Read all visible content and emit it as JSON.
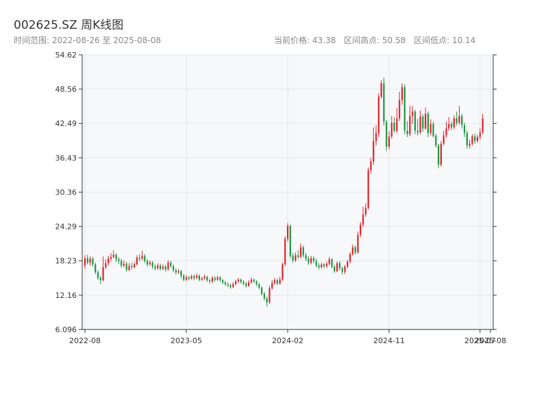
{
  "header": {
    "title": "002625.SZ 周K线图",
    "range_text": "时间范围: 2022-08-26 至 2025-08-08",
    "current_price": "当前价格: 43.38",
    "period_high": "区间高点: 50.58",
    "period_low": "区间低点: 10.14"
  },
  "colors": {
    "up": "#e0212b",
    "down": "#1a9641",
    "plot_bg": "#f7f8fa",
    "grid": "#e3e6ea",
    "axis": "#333333"
  },
  "chart_data": {
    "type": "candlestick",
    "title": "002625.SZ 周K线图",
    "xlabel": "",
    "ylabel": "",
    "ylim": [
      6.096,
      54.62
    ],
    "y_ticks": [
      "6.096",
      "12.16",
      "18.23",
      "24.29",
      "30.36",
      "36.43",
      "42.49",
      "48.56",
      "54.62"
    ],
    "x_ticks": [
      "2022-08",
      "2023-05",
      "2024-02",
      "2024-11",
      "2025-07",
      "2025-08"
    ],
    "x_tick_index": [
      0,
      39,
      78,
      117,
      152,
      156
    ],
    "x_range": [
      0,
      156
    ],
    "grid": true,
    "candles": [
      [
        17.4,
        18.7,
        19.2,
        16.8
      ],
      [
        18.7,
        17.9,
        19.3,
        17.6
      ],
      [
        17.9,
        18.6,
        19.0,
        17.4
      ],
      [
        18.6,
        17.6,
        18.9,
        17.2
      ],
      [
        17.6,
        16.2,
        17.9,
        15.9
      ],
      [
        16.2,
        15.2,
        16.6,
        14.9
      ],
      [
        15.2,
        14.8,
        15.6,
        14.1
      ],
      [
        14.8,
        17.1,
        19.0,
        14.6
      ],
      [
        17.1,
        17.8,
        18.5,
        16.8
      ],
      [
        17.8,
        18.6,
        19.1,
        17.4
      ],
      [
        18.6,
        18.9,
        19.6,
        18.1
      ],
      [
        18.9,
        19.3,
        20.1,
        18.7
      ],
      [
        19.3,
        18.5,
        19.6,
        18.0
      ],
      [
        18.5,
        18.2,
        18.9,
        17.6
      ],
      [
        18.2,
        17.4,
        18.6,
        17.0
      ],
      [
        17.4,
        17.7,
        18.3,
        17.1
      ],
      [
        17.7,
        16.6,
        18.0,
        16.3
      ],
      [
        16.6,
        17.3,
        17.8,
        16.4
      ],
      [
        17.3,
        17.1,
        17.9,
        16.7
      ],
      [
        17.1,
        17.6,
        18.0,
        16.9
      ],
      [
        17.6,
        18.8,
        19.2,
        17.4
      ],
      [
        18.8,
        18.6,
        19.4,
        18.1
      ],
      [
        18.6,
        19.1,
        20.0,
        18.3
      ],
      [
        19.1,
        18.2,
        19.4,
        17.8
      ],
      [
        18.2,
        17.6,
        18.5,
        17.2
      ],
      [
        17.6,
        17.9,
        18.3,
        17.4
      ],
      [
        17.9,
        17.2,
        18.2,
        16.8
      ],
      [
        17.2,
        16.9,
        17.6,
        16.5
      ],
      [
        16.9,
        17.4,
        17.8,
        16.6
      ],
      [
        17.4,
        16.8,
        17.7,
        16.5
      ],
      [
        16.8,
        17.2,
        17.6,
        16.6
      ],
      [
        17.2,
        16.7,
        17.5,
        16.3
      ],
      [
        16.7,
        17.9,
        18.3,
        16.5
      ],
      [
        17.9,
        17.3,
        18.2,
        17.0
      ],
      [
        17.3,
        16.6,
        17.6,
        16.2
      ],
      [
        16.6,
        16.2,
        16.9,
        15.8
      ],
      [
        16.2,
        16.4,
        16.8,
        15.9
      ],
      [
        16.4,
        15.6,
        16.6,
        15.1
      ],
      [
        15.6,
        14.9,
        15.9,
        14.6
      ],
      [
        14.9,
        15.3,
        15.7,
        14.7
      ],
      [
        15.3,
        15.1,
        15.6,
        14.8
      ],
      [
        15.1,
        15.5,
        15.8,
        14.9
      ],
      [
        15.5,
        15.2,
        15.8,
        14.8
      ],
      [
        15.2,
        15.6,
        16.0,
        15.0
      ],
      [
        15.6,
        14.9,
        15.8,
        14.6
      ],
      [
        14.9,
        15.1,
        15.4,
        14.7
      ],
      [
        15.1,
        15.4,
        15.8,
        14.9
      ],
      [
        15.4,
        14.8,
        15.6,
        14.5
      ],
      [
        14.8,
        14.6,
        15.0,
        14.2
      ],
      [
        14.6,
        15.2,
        15.5,
        14.3
      ],
      [
        15.2,
        14.9,
        15.5,
        14.6
      ],
      [
        14.9,
        15.3,
        15.6,
        14.7
      ],
      [
        15.3,
        14.8,
        15.5,
        14.5
      ],
      [
        14.8,
        14.4,
        15.0,
        14.1
      ],
      [
        14.4,
        14.1,
        14.7,
        13.8
      ],
      [
        14.1,
        13.9,
        14.4,
        13.6
      ],
      [
        13.9,
        13.6,
        14.2,
        13.3
      ],
      [
        13.6,
        14.1,
        14.5,
        13.4
      ],
      [
        14.1,
        14.6,
        14.9,
        13.9
      ],
      [
        14.6,
        14.9,
        15.2,
        14.3
      ],
      [
        14.9,
        14.5,
        15.1,
        14.2
      ],
      [
        14.5,
        14.2,
        14.8,
        13.9
      ],
      [
        14.2,
        13.8,
        14.5,
        13.5
      ],
      [
        13.8,
        14.4,
        14.8,
        13.6
      ],
      [
        14.4,
        14.9,
        15.3,
        14.2
      ],
      [
        14.9,
        14.6,
        15.1,
        14.3
      ],
      [
        14.6,
        14.1,
        14.8,
        13.8
      ],
      [
        14.1,
        13.5,
        14.3,
        13.2
      ],
      [
        13.5,
        12.4,
        13.7,
        12.1
      ],
      [
        12.4,
        11.6,
        12.7,
        11.2
      ],
      [
        11.6,
        10.9,
        11.9,
        10.14
      ],
      [
        10.9,
        13.4,
        13.8,
        10.6
      ],
      [
        13.4,
        14.3,
        14.8,
        13.1
      ],
      [
        14.3,
        14.8,
        15.2,
        14.0
      ],
      [
        14.8,
        14.2,
        15.1,
        13.9
      ],
      [
        14.2,
        14.9,
        15.4,
        14.0
      ],
      [
        14.9,
        17.6,
        17.9,
        14.7
      ],
      [
        17.6,
        22.1,
        22.6,
        17.3
      ],
      [
        22.1,
        24.4,
        24.9,
        21.6
      ],
      [
        24.4,
        19.1,
        24.6,
        18.7
      ],
      [
        19.1,
        18.3,
        19.6,
        17.9
      ],
      [
        18.3,
        19.2,
        19.7,
        18.0
      ],
      [
        19.2,
        18.9,
        20.1,
        18.6
      ],
      [
        18.9,
        20.6,
        21.3,
        18.7
      ],
      [
        20.6,
        19.2,
        20.9,
        18.8
      ],
      [
        19.2,
        18.6,
        19.6,
        18.2
      ],
      [
        18.6,
        17.9,
        19.0,
        17.5
      ],
      [
        17.9,
        18.7,
        19.1,
        17.6
      ],
      [
        18.7,
        18.2,
        19.0,
        17.8
      ],
      [
        18.2,
        17.4,
        18.6,
        17.0
      ],
      [
        17.4,
        17.1,
        17.8,
        16.7
      ],
      [
        17.1,
        17.6,
        17.9,
        16.9
      ],
      [
        17.6,
        17.3,
        17.8,
        16.9
      ],
      [
        17.3,
        17.7,
        18.1,
        17.0
      ],
      [
        17.7,
        18.5,
        18.9,
        17.4
      ],
      [
        18.5,
        17.2,
        18.7,
        16.9
      ],
      [
        17.2,
        16.4,
        17.5,
        16.1
      ],
      [
        16.4,
        17.8,
        18.1,
        16.2
      ],
      [
        17.8,
        16.9,
        18.2,
        16.6
      ],
      [
        16.9,
        16.3,
        17.2,
        15.8
      ],
      [
        16.3,
        17.2,
        17.5,
        15.9
      ],
      [
        17.2,
        18.1,
        18.4,
        16.9
      ],
      [
        18.1,
        19.4,
        19.8,
        17.8
      ],
      [
        19.4,
        20.6,
        21.1,
        19.1
      ],
      [
        20.6,
        19.7,
        20.9,
        19.3
      ],
      [
        19.7,
        22.8,
        23.4,
        19.5
      ],
      [
        22.8,
        24.6,
        25.1,
        22.4
      ],
      [
        24.6,
        26.4,
        27.8,
        24.2
      ],
      [
        26.4,
        27.6,
        28.4,
        26.0
      ],
      [
        27.6,
        34.2,
        34.7,
        27.3
      ],
      [
        34.2,
        35.8,
        36.4,
        33.6
      ],
      [
        35.8,
        39.4,
        41.8,
        35.2
      ],
      [
        39.4,
        40.8,
        42.2,
        38.6
      ],
      [
        40.8,
        47.2,
        47.8,
        40.1
      ],
      [
        47.2,
        49.6,
        50.1,
        46.9
      ],
      [
        49.6,
        42.8,
        50.58,
        42.1
      ],
      [
        42.8,
        38.4,
        43.1,
        37.6
      ],
      [
        38.4,
        40.2,
        41.1,
        37.9
      ],
      [
        40.2,
        42.6,
        43.8,
        39.8
      ],
      [
        42.6,
        41.2,
        43.6,
        40.9
      ],
      [
        41.2,
        43.4,
        45.2,
        40.8
      ],
      [
        43.4,
        46.6,
        48.1,
        42.9
      ],
      [
        46.6,
        48.9,
        49.6,
        45.8
      ],
      [
        48.9,
        41.2,
        49.4,
        40.6
      ],
      [
        41.2,
        40.6,
        42.9,
        40.1
      ],
      [
        40.6,
        43.8,
        45.6,
        40.2
      ],
      [
        43.8,
        44.6,
        45.6,
        42.4
      ],
      [
        44.6,
        41.2,
        44.9,
        40.6
      ],
      [
        41.2,
        40.9,
        43.3,
        40.4
      ],
      [
        40.9,
        43.7,
        44.8,
        40.6
      ],
      [
        43.7,
        41.6,
        44.1,
        41.0
      ],
      [
        41.6,
        44.2,
        45.3,
        41.4
      ],
      [
        44.2,
        40.8,
        44.6,
        40.1
      ],
      [
        40.8,
        42.4,
        43.2,
        40.4
      ],
      [
        42.4,
        40.3,
        42.8,
        40.0
      ],
      [
        40.3,
        38.6,
        40.7,
        38.2
      ],
      [
        38.6,
        35.2,
        38.9,
        34.6
      ],
      [
        35.2,
        38.9,
        39.4,
        34.9
      ],
      [
        38.9,
        40.4,
        41.2,
        38.6
      ],
      [
        40.4,
        41.6,
        42.8,
        40.0
      ],
      [
        41.6,
        42.4,
        43.6,
        41.2
      ],
      [
        42.4,
        41.8,
        42.9,
        41.3
      ],
      [
        41.8,
        43.4,
        43.9,
        41.5
      ],
      [
        43.4,
        42.6,
        44.6,
        42.1
      ],
      [
        42.6,
        43.8,
        45.6,
        42.3
      ],
      [
        43.8,
        42.2,
        44.2,
        41.6
      ],
      [
        42.2,
        40.8,
        42.6,
        40.1
      ],
      [
        40.8,
        38.6,
        41.2,
        38.0
      ],
      [
        38.6,
        38.9,
        39.6,
        38.1
      ],
      [
        38.9,
        40.2,
        40.6,
        38.6
      ],
      [
        40.2,
        39.4,
        40.7,
        38.9
      ],
      [
        39.4,
        40.1,
        40.5,
        39.1
      ],
      [
        40.1,
        40.9,
        41.6,
        39.6
      ],
      [
        40.9,
        43.38,
        44.2,
        40.6
      ]
    ]
  }
}
